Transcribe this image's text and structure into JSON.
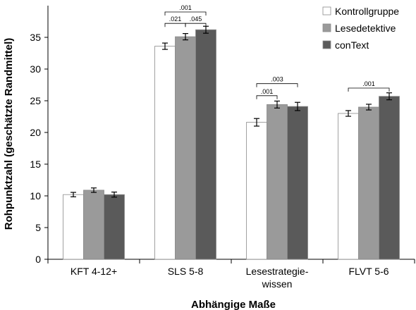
{
  "chart_data": {
    "type": "bar",
    "title": "",
    "xlabel": "Abhängige Maße",
    "ylabel": "Rohpunktzahl (geschätzte Randmittel)",
    "ylim": [
      0,
      40
    ],
    "yticks": [
      0,
      5,
      10,
      15,
      20,
      25,
      30,
      35
    ],
    "grid": false,
    "legend_position": "top-right",
    "categories": [
      "KFT 4-12+",
      "SLS 5-8",
      "Lesestrategie-\nwissen",
      "FLVT 5-6"
    ],
    "category_lines": [
      [
        "KFT 4-12+"
      ],
      [
        "SLS 5-8"
      ],
      [
        "Lesestrategie-",
        "wissen"
      ],
      [
        "FLVT 5-6"
      ]
    ],
    "series": [
      {
        "name": "Kontrollgruppe",
        "color": "#ffffff",
        "values": [
          10.2,
          33.6,
          21.6,
          23.0
        ],
        "errors": [
          0.35,
          0.5,
          0.6,
          0.45
        ]
      },
      {
        "name": "Lesedetektive",
        "color": "#9a9a9a",
        "values": [
          10.9,
          35.1,
          24.4,
          24.0
        ],
        "errors": [
          0.35,
          0.5,
          0.55,
          0.45
        ]
      },
      {
        "name": "conText",
        "color": "#5a5a5a",
        "values": [
          10.2,
          36.2,
          24.1,
          25.7
        ],
        "errors": [
          0.4,
          0.55,
          0.65,
          0.55
        ]
      }
    ],
    "significance": [
      {
        "label": ".001",
        "category": 1,
        "from": 0,
        "to": 2,
        "level": 39.0
      },
      {
        "label": ".021",
        "category": 1,
        "from": 0,
        "to": 1,
        "level": 37.2
      },
      {
        "label": ".045",
        "category": 1,
        "from": 1,
        "to": 2,
        "level": 37.2
      },
      {
        "label": ".003",
        "category": 2,
        "from": 0,
        "to": 2,
        "level": 27.7
      },
      {
        "label": ".001",
        "category": 2,
        "from": 0,
        "to": 1,
        "level": 25.8
      },
      {
        "label": ".001",
        "category": 3,
        "from": 0,
        "to": 2,
        "level": 27.0
      }
    ]
  }
}
